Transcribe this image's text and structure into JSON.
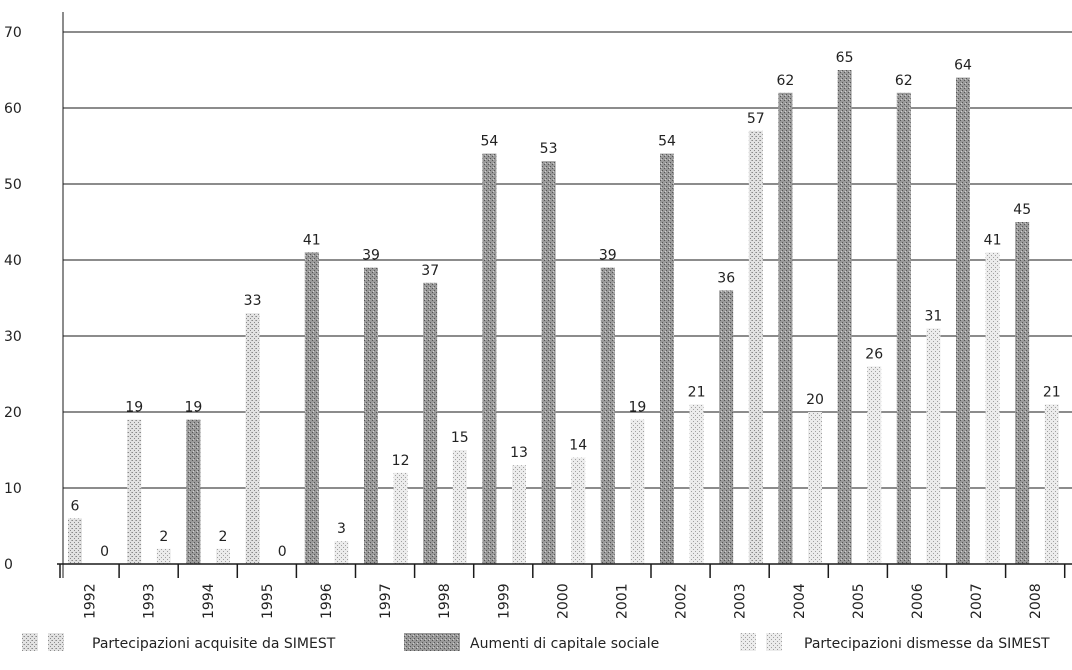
{
  "chart_data": {
    "type": "bar",
    "title": "",
    "xlabel": "",
    "ylabel": "",
    "ylim": [
      0,
      70
    ],
    "yticks": [
      0,
      10,
      20,
      30,
      40,
      50,
      60,
      70
    ],
    "grid": "horizontal",
    "legend_position": "bottom",
    "categories": [
      "1992",
      "1993",
      "1994",
      "1995",
      "1996",
      "1997",
      "1998",
      "1999",
      "2000",
      "2001",
      "2002",
      "2003",
      "2004",
      "2005",
      "2006",
      "2007",
      "2008"
    ],
    "bar_slots": [
      {
        "year": "1992",
        "value": 6,
        "series": "acquisite"
      },
      {
        "year": "1992",
        "value": 0,
        "series": "dismesse"
      },
      {
        "year": "1993",
        "value": 19,
        "series": "acquisite"
      },
      {
        "year": "1993",
        "value": 2,
        "series": "dismesse"
      },
      {
        "year": "1994",
        "value": 19,
        "series": "aumenti"
      },
      {
        "year": "1994",
        "value": 2,
        "series": "dismesse"
      },
      {
        "year": "1995",
        "value": 33,
        "series": "acquisite"
      },
      {
        "year": "1995",
        "value": 0,
        "series": "dismesse"
      },
      {
        "year": "1996",
        "value": 41,
        "series": "aumenti"
      },
      {
        "year": "1996",
        "value": 3,
        "series": "dismesse"
      },
      {
        "year": "1997",
        "value": 39,
        "series": "aumenti"
      },
      {
        "year": "1997",
        "value": 12,
        "series": "dismesse"
      },
      {
        "year": "1998",
        "value": 37,
        "series": "aumenti"
      },
      {
        "year": "1998",
        "value": 15,
        "series": "dismesse"
      },
      {
        "year": "1999",
        "value": 54,
        "series": "aumenti"
      },
      {
        "year": "1999",
        "value": 13,
        "series": "dismesse"
      },
      {
        "year": "2000",
        "value": 53,
        "series": "aumenti"
      },
      {
        "year": "2000",
        "value": 14,
        "series": "dismesse"
      },
      {
        "year": "2001",
        "value": 39,
        "series": "aumenti"
      },
      {
        "year": "2001",
        "value": 19,
        "series": "dismesse"
      },
      {
        "year": "2002",
        "value": 54,
        "series": "aumenti"
      },
      {
        "year": "2002",
        "value": 21,
        "series": "dismesse"
      },
      {
        "year": "2003",
        "value": 36,
        "series": "aumenti"
      },
      {
        "year": "2003",
        "value": 57,
        "series": "acquisite"
      },
      {
        "year": "2004",
        "value": 62,
        "series": "aumenti"
      },
      {
        "year": "2004",
        "value": 20,
        "series": "dismesse"
      },
      {
        "year": "2005",
        "value": 65,
        "series": "aumenti"
      },
      {
        "year": "2005",
        "value": 26,
        "series": "dismesse"
      },
      {
        "year": "2006",
        "value": 62,
        "series": "aumenti"
      },
      {
        "year": "2006",
        "value": 31,
        "series": "dismesse"
      },
      {
        "year": "2007",
        "value": 64,
        "series": "aumenti"
      },
      {
        "year": "2007",
        "value": 41,
        "series": "dismesse"
      },
      {
        "year": "2008",
        "value": 45,
        "series": "aumenti"
      },
      {
        "year": "2008",
        "value": 21,
        "series": "dismesse"
      }
    ],
    "series": [
      {
        "key": "acquisite",
        "name": "Partecipazioni acquisite da SIMEST",
        "color": "#c4c4c4"
      },
      {
        "key": "aumenti",
        "name": "Aumenti di capitale sociale",
        "color": "#8e8e8e"
      },
      {
        "key": "dismesse",
        "name": "Partecipazioni dismesse da SIMEST",
        "color": "#d6d6d6"
      }
    ]
  }
}
